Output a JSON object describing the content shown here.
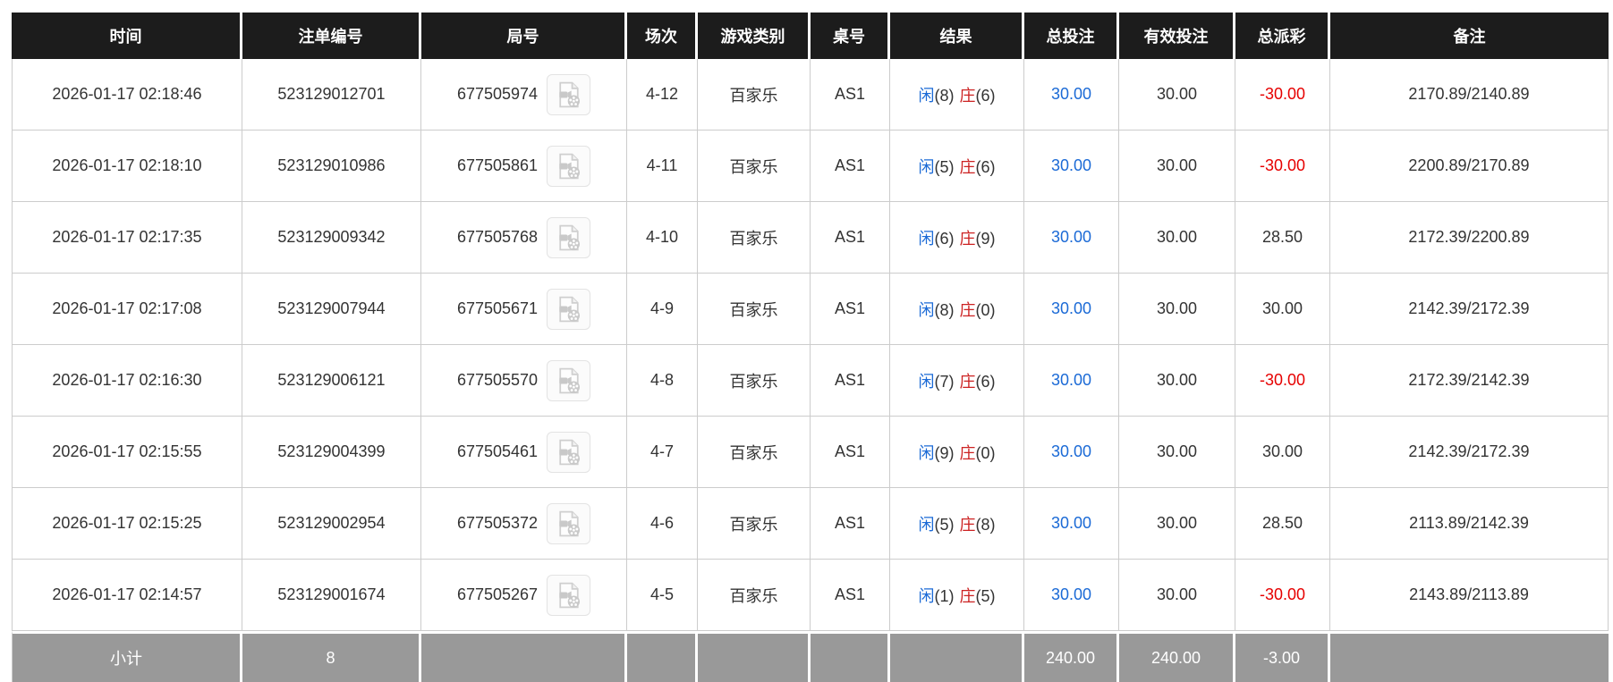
{
  "page": {
    "background": "#ffffff"
  },
  "colors": {
    "header_bg": "#1c1c1c",
    "subtotal_bg": "#999999",
    "grid_line": "#cccccc",
    "link_blue": "#1b6ad6",
    "player_blue": "#1b6ad6",
    "banker_red": "#cc2222",
    "loss_red": "#e60000",
    "text": "#333333"
  },
  "table": {
    "columns": [
      "时间",
      "注单编号",
      "局号",
      "场次",
      "游戏类别",
      "桌号",
      "结果",
      "总投注",
      "有效投注",
      "总派彩",
      "备注"
    ],
    "video_icon": "video-file-icon",
    "rows": [
      {
        "time": "2026-01-17 02:18:46",
        "bet_id": "523129012701",
        "round_no": "677505974",
        "session": "4-12",
        "game_type": "百家乐",
        "table_no": "AS1",
        "result": {
          "player_label": "闲",
          "player_score": "(8)",
          "banker_label": "庄",
          "banker_score": "(6)"
        },
        "total_bet": "30.00",
        "valid_bet": "30.00",
        "payout": "-30.00",
        "note": "2170.89/2140.89"
      },
      {
        "time": "2026-01-17 02:18:10",
        "bet_id": "523129010986",
        "round_no": "677505861",
        "session": "4-11",
        "game_type": "百家乐",
        "table_no": "AS1",
        "result": {
          "player_label": "闲",
          "player_score": "(5)",
          "banker_label": "庄",
          "banker_score": "(6)"
        },
        "total_bet": "30.00",
        "valid_bet": "30.00",
        "payout": "-30.00",
        "note": "2200.89/2170.89"
      },
      {
        "time": "2026-01-17 02:17:35",
        "bet_id": "523129009342",
        "round_no": "677505768",
        "session": "4-10",
        "game_type": "百家乐",
        "table_no": "AS1",
        "result": {
          "player_label": "闲",
          "player_score": "(6)",
          "banker_label": "庄",
          "banker_score": "(9)"
        },
        "total_bet": "30.00",
        "valid_bet": "30.00",
        "payout": "28.50",
        "note": "2172.39/2200.89"
      },
      {
        "time": "2026-01-17 02:17:08",
        "bet_id": "523129007944",
        "round_no": "677505671",
        "session": "4-9",
        "game_type": "百家乐",
        "table_no": "AS1",
        "result": {
          "player_label": "闲",
          "player_score": "(8)",
          "banker_label": "庄",
          "banker_score": "(0)"
        },
        "total_bet": "30.00",
        "valid_bet": "30.00",
        "payout": "30.00",
        "note": "2142.39/2172.39"
      },
      {
        "time": "2026-01-17 02:16:30",
        "bet_id": "523129006121",
        "round_no": "677505570",
        "session": "4-8",
        "game_type": "百家乐",
        "table_no": "AS1",
        "result": {
          "player_label": "闲",
          "player_score": "(7)",
          "banker_label": "庄",
          "banker_score": "(6)"
        },
        "total_bet": "30.00",
        "valid_bet": "30.00",
        "payout": "-30.00",
        "note": "2172.39/2142.39"
      },
      {
        "time": "2026-01-17 02:15:55",
        "bet_id": "523129004399",
        "round_no": "677505461",
        "session": "4-7",
        "game_type": "百家乐",
        "table_no": "AS1",
        "result": {
          "player_label": "闲",
          "player_score": "(9)",
          "banker_label": "庄",
          "banker_score": "(0)"
        },
        "total_bet": "30.00",
        "valid_bet": "30.00",
        "payout": "30.00",
        "note": "2142.39/2172.39"
      },
      {
        "time": "2026-01-17 02:15:25",
        "bet_id": "523129002954",
        "round_no": "677505372",
        "session": "4-6",
        "game_type": "百家乐",
        "table_no": "AS1",
        "result": {
          "player_label": "闲",
          "player_score": "(5)",
          "banker_label": "庄",
          "banker_score": "(8)"
        },
        "total_bet": "30.00",
        "valid_bet": "30.00",
        "payout": "28.50",
        "note": "2113.89/2142.39"
      },
      {
        "time": "2026-01-17 02:14:57",
        "bet_id": "523129001674",
        "round_no": "677505267",
        "session": "4-5",
        "game_type": "百家乐",
        "table_no": "AS1",
        "result": {
          "player_label": "闲",
          "player_score": "(1)",
          "banker_label": "庄",
          "banker_score": "(5)"
        },
        "total_bet": "30.00",
        "valid_bet": "30.00",
        "payout": "-30.00",
        "note": "2143.89/2113.89"
      }
    ],
    "subtotal": {
      "label": "小计",
      "count": "8",
      "total_bet": "240.00",
      "valid_bet": "240.00",
      "payout": "-3.00"
    }
  }
}
